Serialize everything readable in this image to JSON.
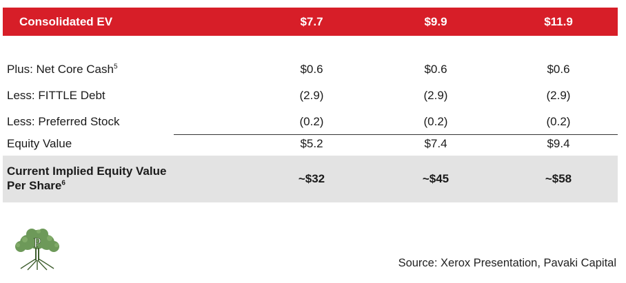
{
  "table": {
    "header": {
      "label": "Consolidated EV",
      "values": [
        "$7.7",
        "$9.9",
        "$11.9"
      ]
    },
    "rows": [
      {
        "label": "Plus: Net Core Cash",
        "footnote": "5",
        "values": [
          "$0.6",
          "$0.6",
          "$0.6"
        ]
      },
      {
        "label": "Less: FITTLE Debt",
        "values": [
          "(2.9)",
          "(2.9)",
          "(2.9)"
        ]
      },
      {
        "label": "Less: Preferred Stock",
        "values": [
          "(0.2)",
          "(0.2)",
          "(0.2)"
        ]
      },
      {
        "label": "Equity Value",
        "values": [
          "$5.2",
          "$7.4",
          "$9.4"
        ]
      }
    ],
    "total": {
      "label_line1": "Current Implied Equity Value",
      "label_line2": "Per Share",
      "footnote": "6",
      "values": [
        "~$32",
        "~$45",
        "~$58"
      ]
    }
  },
  "logo": {
    "icon": "tree-logo-icon",
    "letter": "P"
  },
  "source": "Source: Xerox Presentation, Pavaki Capital",
  "colors": {
    "header_bg": "#d71e28",
    "total_bg": "#e3e3e3",
    "logo_green": "#4a7a3a"
  }
}
